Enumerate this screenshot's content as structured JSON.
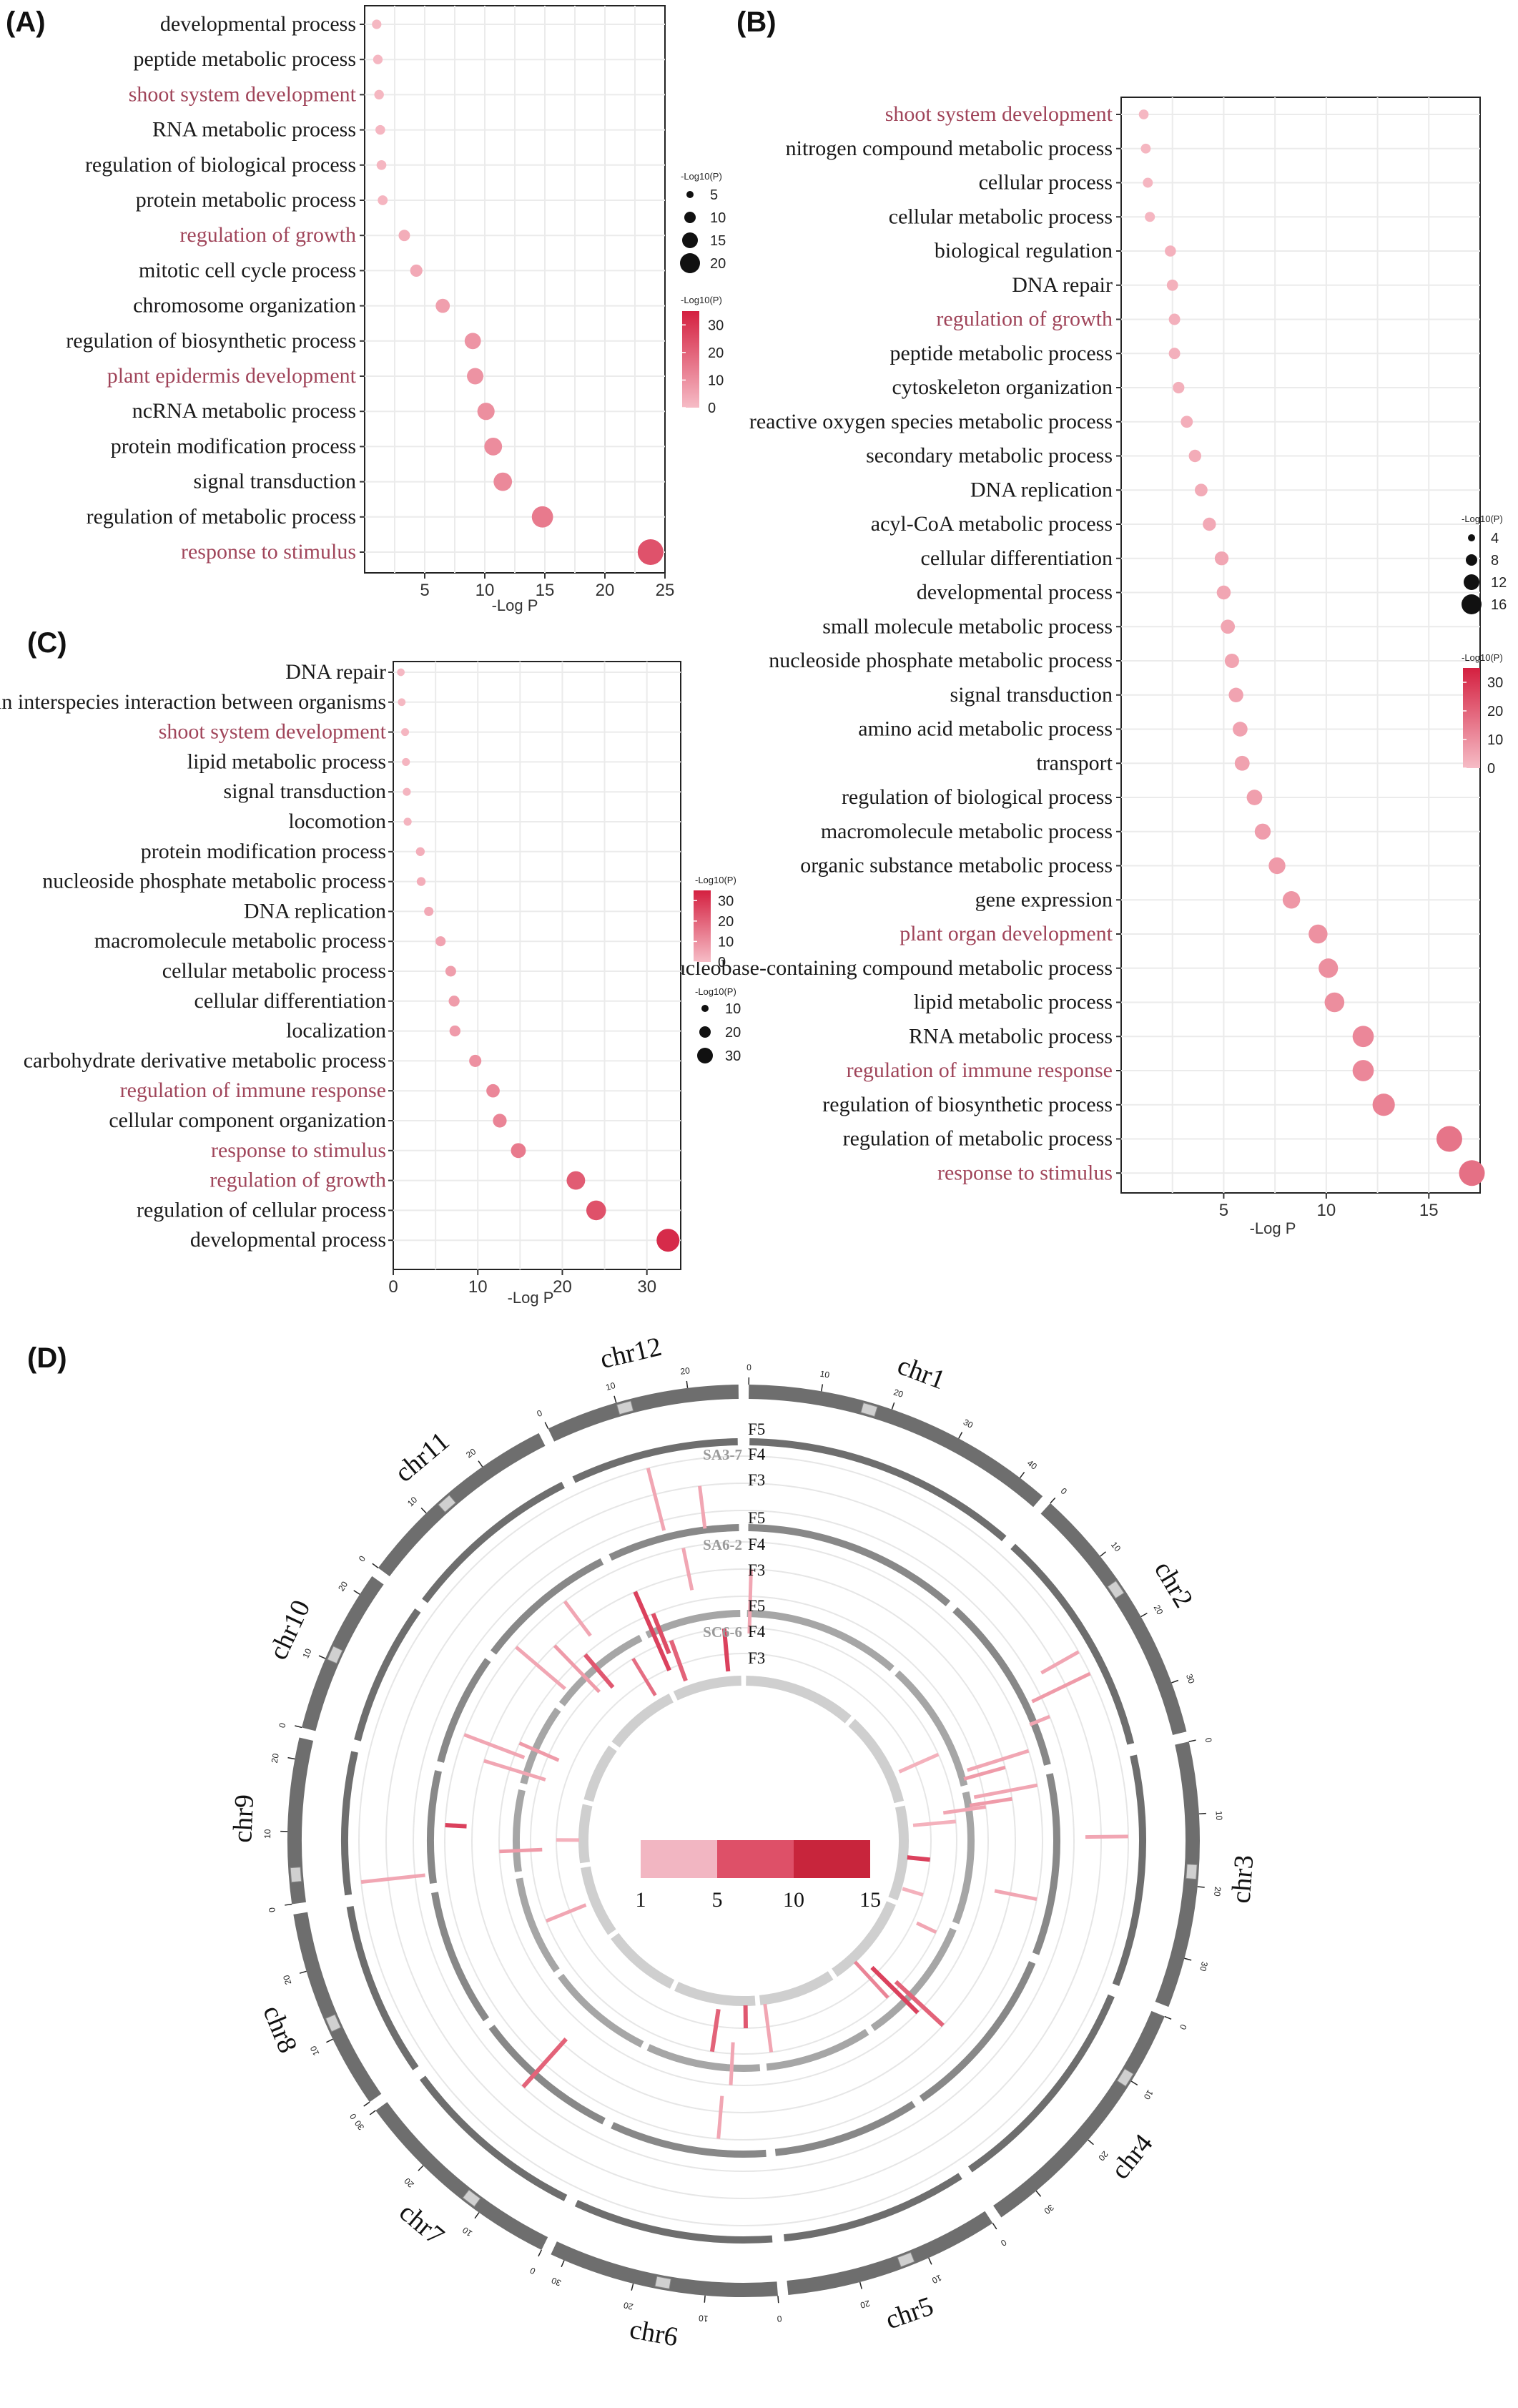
{
  "colors": {
    "highlight_text": "#a0455a",
    "normal_text": "#1a1a1a",
    "grid": "#ebebeb",
    "low": "#f6bcc6",
    "high": "#d42040",
    "outer_ring": "#6e6e6e",
    "ring_mid": "#888888",
    "ring_inner": "#a6a6a6",
    "ring_innermost": "#cfcfcf",
    "centromere": "#d0d0d0",
    "track_circle": "#e6e6e6"
  },
  "chart_data": [
    {
      "id": "A",
      "label": "(A)",
      "type": "scatter",
      "xlabel": "-Log P",
      "xlim": [
        0,
        25
      ],
      "xticks": [
        5,
        10,
        15,
        20,
        25
      ],
      "terms": [
        {
          "name": "developmental process",
          "value": 1.0,
          "highlight": false
        },
        {
          "name": "peptide metabolic process",
          "value": 1.1,
          "highlight": false
        },
        {
          "name": "shoot system development",
          "value": 1.2,
          "highlight": true
        },
        {
          "name": "RNA metabolic process",
          "value": 1.3,
          "highlight": false
        },
        {
          "name": "regulation of biological process",
          "value": 1.4,
          "highlight": false
        },
        {
          "name": "protein metabolic process",
          "value": 1.5,
          "highlight": false
        },
        {
          "name": "regulation of growth",
          "value": 3.3,
          "highlight": true
        },
        {
          "name": "mitotic cell cycle process",
          "value": 4.3,
          "highlight": false
        },
        {
          "name": "chromosome organization",
          "value": 6.5,
          "highlight": false
        },
        {
          "name": "regulation of biosynthetic process",
          "value": 9.0,
          "highlight": false
        },
        {
          "name": "plant epidermis development",
          "value": 9.2,
          "highlight": true
        },
        {
          "name": "ncRNA metabolic process",
          "value": 10.1,
          "highlight": false
        },
        {
          "name": "protein modification process",
          "value": 10.7,
          "highlight": false
        },
        {
          "name": "signal transduction",
          "value": 11.5,
          "highlight": false
        },
        {
          "name": "regulation of metabolic process",
          "value": 14.8,
          "highlight": false
        },
        {
          "name": "response to stimulus",
          "value": 23.8,
          "highlight": true
        }
      ],
      "size_legend": {
        "title": "-Log10(P)",
        "values": [
          5,
          10,
          15,
          20
        ]
      },
      "color_legend": {
        "title": "-Log10(P)",
        "ticks": [
          30,
          20,
          10,
          0
        ],
        "max": 35
      }
    },
    {
      "id": "B",
      "label": "(B)",
      "type": "scatter",
      "xlabel": "-Log P",
      "xlim": [
        0,
        17.5
      ],
      "xticks": [
        5,
        10,
        15
      ],
      "terms": [
        {
          "name": "shoot system development",
          "value": 1.1,
          "highlight": true
        },
        {
          "name": "nitrogen compound metabolic process",
          "value": 1.2,
          "highlight": false
        },
        {
          "name": "cellular process",
          "value": 1.3,
          "highlight": false
        },
        {
          "name": "cellular metabolic process",
          "value": 1.4,
          "highlight": false
        },
        {
          "name": "biological regulation",
          "value": 2.4,
          "highlight": false
        },
        {
          "name": "DNA repair",
          "value": 2.5,
          "highlight": false
        },
        {
          "name": "regulation of growth",
          "value": 2.6,
          "highlight": true
        },
        {
          "name": "peptide metabolic process",
          "value": 2.6,
          "highlight": false
        },
        {
          "name": "cytoskeleton organization",
          "value": 2.8,
          "highlight": false
        },
        {
          "name": "reactive oxygen species metabolic process",
          "value": 3.2,
          "highlight": false
        },
        {
          "name": "secondary metabolic process",
          "value": 3.6,
          "highlight": false
        },
        {
          "name": "DNA replication",
          "value": 3.9,
          "highlight": false
        },
        {
          "name": "acyl-CoA metabolic process",
          "value": 4.3,
          "highlight": false
        },
        {
          "name": "cellular differentiation",
          "value": 4.9,
          "highlight": false
        },
        {
          "name": "developmental process",
          "value": 5.0,
          "highlight": false
        },
        {
          "name": "small molecule metabolic process",
          "value": 5.2,
          "highlight": false
        },
        {
          "name": "nucleoside phosphate metabolic process",
          "value": 5.4,
          "highlight": false
        },
        {
          "name": "signal transduction",
          "value": 5.6,
          "highlight": false
        },
        {
          "name": "amino acid metabolic process",
          "value": 5.8,
          "highlight": false
        },
        {
          "name": "transport",
          "value": 5.9,
          "highlight": false
        },
        {
          "name": "regulation of biological process",
          "value": 6.5,
          "highlight": false
        },
        {
          "name": "macromolecule metabolic process",
          "value": 6.9,
          "highlight": false
        },
        {
          "name": "organic substance metabolic process",
          "value": 7.6,
          "highlight": false
        },
        {
          "name": "gene expression",
          "value": 8.3,
          "highlight": false
        },
        {
          "name": "plant organ development",
          "value": 9.6,
          "highlight": true
        },
        {
          "name": "nucleobase-containing compound metabolic process",
          "value": 10.1,
          "highlight": false
        },
        {
          "name": "lipid metabolic process",
          "value": 10.4,
          "highlight": false
        },
        {
          "name": "RNA metabolic process",
          "value": 11.8,
          "highlight": false
        },
        {
          "name": "regulation of immune response",
          "value": 11.8,
          "highlight": true
        },
        {
          "name": "regulation of biosynthetic process",
          "value": 12.8,
          "highlight": false
        },
        {
          "name": "regulation of metabolic process",
          "value": 16.0,
          "highlight": false
        },
        {
          "name": "response to stimulus",
          "value": 17.1,
          "highlight": true
        }
      ],
      "size_legend": {
        "title": "-Log10(P)",
        "values": [
          4,
          8,
          12,
          16
        ]
      },
      "color_legend": {
        "title": "-Log10(P)",
        "ticks": [
          30,
          20,
          10,
          0
        ],
        "max": 35
      }
    },
    {
      "id": "C",
      "label": "(C)",
      "type": "scatter",
      "xlabel": "-Log P",
      "xlim": [
        0,
        34
      ],
      "xticks": [
        0,
        10,
        20,
        30
      ],
      "terms": [
        {
          "name": "DNA repair",
          "value": 0.9,
          "highlight": false
        },
        {
          "name": "biological process involved in interspecies interaction between organisms",
          "value": 1.0,
          "highlight": false
        },
        {
          "name": "shoot system development",
          "value": 1.4,
          "highlight": true
        },
        {
          "name": "lipid metabolic process",
          "value": 1.5,
          "highlight": false
        },
        {
          "name": "signal transduction",
          "value": 1.6,
          "highlight": false
        },
        {
          "name": "locomotion",
          "value": 1.7,
          "highlight": false
        },
        {
          "name": "protein modification process",
          "value": 3.2,
          "highlight": false
        },
        {
          "name": "nucleoside phosphate metabolic process",
          "value": 3.3,
          "highlight": false
        },
        {
          "name": "DNA replication",
          "value": 4.2,
          "highlight": false
        },
        {
          "name": "macromolecule metabolic process",
          "value": 5.6,
          "highlight": false
        },
        {
          "name": "cellular metabolic process",
          "value": 6.8,
          "highlight": false
        },
        {
          "name": "cellular differentiation",
          "value": 7.2,
          "highlight": false
        },
        {
          "name": "localization",
          "value": 7.3,
          "highlight": false
        },
        {
          "name": "carbohydrate derivative metabolic process",
          "value": 9.7,
          "highlight": false
        },
        {
          "name": "regulation of immune response",
          "value": 11.8,
          "highlight": true
        },
        {
          "name": "cellular component organization",
          "value": 12.6,
          "highlight": false
        },
        {
          "name": "response to stimulus",
          "value": 14.8,
          "highlight": true
        },
        {
          "name": "regulation of growth",
          "value": 21.6,
          "highlight": true
        },
        {
          "name": "regulation of cellular process",
          "value": 24.0,
          "highlight": false
        },
        {
          "name": "developmental process",
          "value": 32.5,
          "highlight": false
        }
      ],
      "size_legend": {
        "title": "-Log10(P)",
        "values": [
          10,
          20,
          30
        ]
      },
      "color_legend": {
        "title": "-Log10(P)",
        "ticks": [
          30,
          20,
          10,
          0
        ],
        "max": 35
      }
    },
    {
      "id": "D",
      "label": "(D)",
      "type": "circos",
      "chromosomes": [
        {
          "name": "chr1",
          "length": 44,
          "ticks": [
            0,
            10,
            20,
            30,
            40
          ],
          "centromere": 16
        },
        {
          "name": "chr2",
          "length": 37,
          "ticks": [
            0,
            10,
            20,
            30
          ],
          "centromere": 14
        },
        {
          "name": "chr3",
          "length": 37,
          "ticks": [
            0,
            10,
            20,
            30
          ],
          "centromere": 17
        },
        {
          "name": "chr4",
          "length": 36,
          "ticks": [
            0,
            10,
            20,
            30
          ],
          "centromere": 9
        },
        {
          "name": "chr5",
          "length": 30,
          "ticks": [
            0,
            10,
            20
          ],
          "centromere": 12
        },
        {
          "name": "chr6",
          "length": 32,
          "ticks": [
            0,
            10,
            20,
            30
          ],
          "centromere": 15
        },
        {
          "name": "chr7",
          "length": 30,
          "ticks": [
            0,
            10,
            20,
            30
          ],
          "centromere": 11
        },
        {
          "name": "chr8",
          "length": 28,
          "ticks": [
            0,
            10,
            20
          ],
          "centromere": 11
        },
        {
          "name": "chr9",
          "length": 23,
          "ticks": [
            0,
            10,
            20
          ],
          "centromere": 3
        },
        {
          "name": "chr10",
          "length": 23,
          "ticks": [
            0,
            10,
            20
          ],
          "centromere": 10
        },
        {
          "name": "chr11",
          "length": 29,
          "ticks": [
            0,
            10,
            20
          ],
          "centromere": 12
        },
        {
          "name": "chr12",
          "length": 27,
          "ticks": [
            0,
            10,
            20
          ],
          "centromere": 10
        }
      ],
      "samples": [
        {
          "name": "SA3-7",
          "tracks": [
            "F5",
            "F4",
            "F3"
          ]
        },
        {
          "name": "SA6-2",
          "tracks": [
            "F5",
            "F4",
            "F3"
          ]
        },
        {
          "name": "SC6-6",
          "tracks": [
            "F5",
            "F4",
            "F3"
          ]
        }
      ],
      "colorbar": {
        "ticks": [
          "1",
          "5",
          "10",
          "15"
        ],
        "colors": [
          "#f2b6c2",
          "#de5068",
          "#c8253c"
        ]
      },
      "marks": [
        {
          "chr": "chr1",
          "pos": 1,
          "track": 4,
          "span": 3,
          "score": 3
        },
        {
          "chr": "chr2",
          "pos": 20,
          "track": 0,
          "span": 2,
          "score": 3
        },
        {
          "chr": "chr2",
          "pos": 24,
          "track": 0,
          "span": 3,
          "score": 4
        },
        {
          "chr": "chr2",
          "pos": 26,
          "track": 6,
          "span": 2,
          "score": 2
        },
        {
          "chr": "chr2",
          "pos": 28,
          "track": 2,
          "span": 1,
          "score": 3
        },
        {
          "chr": "chr2",
          "pos": 33,
          "track": 3,
          "span": 3,
          "score": 3
        },
        {
          "chr": "chr2",
          "pos": 35,
          "track": 4,
          "span": 2,
          "score": 4
        },
        {
          "chr": "chr3",
          "pos": 2,
          "track": 3,
          "span": 3,
          "score": 3
        },
        {
          "chr": "chr3",
          "pos": 4,
          "track": 4,
          "span": 2,
          "score": 4
        },
        {
          "chr": "chr3",
          "pos": 5,
          "track": 5,
          "span": 2,
          "score": 3
        },
        {
          "chr": "chr3",
          "pos": 8,
          "track": 6,
          "span": 2,
          "score": 2
        },
        {
          "chr": "chr3",
          "pos": 13,
          "track": 0,
          "span": 2,
          "score": 3
        },
        {
          "chr": "chr3",
          "pos": 20,
          "track": 7,
          "span": 2,
          "score": 12
        },
        {
          "chr": "chr3",
          "pos": 26,
          "track": 3,
          "span": 2,
          "score": 3
        },
        {
          "chr": "chr3",
          "pos": 32,
          "track": 7,
          "span": 1,
          "score": 2
        },
        {
          "chr": "chr4",
          "pos": 3,
          "track": 6,
          "span": 1,
          "score": 3
        },
        {
          "chr": "chr4",
          "pos": 22,
          "track": 4,
          "span": 3,
          "score": 9
        },
        {
          "chr": "chr4",
          "pos": 24,
          "track": 5,
          "span": 3,
          "score": 12
        },
        {
          "chr": "chr4",
          "pos": 27,
          "track": 6,
          "span": 3,
          "score": 6
        },
        {
          "chr": "chr5",
          "pos": 28,
          "track": 6,
          "span": 3,
          "score": 3
        },
        {
          "chr": "chr6",
          "pos": 4,
          "track": 7,
          "span": 2,
          "score": 10
        },
        {
          "chr": "chr6",
          "pos": 8,
          "track": 5,
          "span": 2,
          "score": 3
        },
        {
          "chr": "chr6",
          "pos": 10,
          "track": 3,
          "span": 2,
          "score": 3
        },
        {
          "chr": "chr6",
          "pos": 14,
          "track": 6,
          "span": 2,
          "score": 9
        },
        {
          "chr": "chr7",
          "pos": 17,
          "track": 2,
          "span": 3,
          "score": 9
        },
        {
          "chr": "chr8",
          "pos": 14,
          "track": 6,
          "span": 2,
          "score": 3
        },
        {
          "chr": "chr9",
          "pos": 2,
          "track": 0,
          "span": 3,
          "score": 3
        },
        {
          "chr": "chr9",
          "pos": 6,
          "track": 5,
          "span": 2,
          "score": 4
        },
        {
          "chr": "chr9",
          "pos": 9,
          "track": 7,
          "span": 2,
          "score": 2
        },
        {
          "chr": "chr9",
          "pos": 12,
          "track": 3,
          "span": 1,
          "score": 12
        },
        {
          "chr": "chr10",
          "pos": 3,
          "track": 4,
          "span": 3,
          "score": 3
        },
        {
          "chr": "chr10",
          "pos": 7,
          "track": 3,
          "span": 3,
          "score": 3
        },
        {
          "chr": "chr10",
          "pos": 10,
          "track": 5,
          "span": 2,
          "score": 4
        },
        {
          "chr": "chr11",
          "pos": 4,
          "track": 3,
          "span": 3,
          "score": 3
        },
        {
          "chr": "chr11",
          "pos": 10,
          "track": 4,
          "span": 3,
          "score": 4
        },
        {
          "chr": "chr11",
          "pos": 14,
          "track": 5,
          "span": 2,
          "score": 10
        },
        {
          "chr": "chr11",
          "pos": 18,
          "track": 3,
          "span": 2,
          "score": 3
        },
        {
          "chr": "chr11",
          "pos": 24,
          "track": 6,
          "span": 2,
          "score": 8
        },
        {
          "chr": "chr12",
          "pos": 2,
          "track": 4,
          "span": 4,
          "score": 12
        },
        {
          "chr": "chr12",
          "pos": 4,
          "track": 5,
          "span": 2,
          "score": 11
        },
        {
          "chr": "chr12",
          "pos": 6,
          "track": 6,
          "span": 2,
          "score": 9
        },
        {
          "chr": "chr12",
          "pos": 12,
          "track": 0,
          "span": 3,
          "score": 3
        },
        {
          "chr": "chr12",
          "pos": 15,
          "track": 3,
          "span": 2,
          "score": 3
        },
        {
          "chr": "chr12",
          "pos": 20,
          "track": 1,
          "span": 2,
          "score": 3
        },
        {
          "chr": "chr12",
          "pos": 22,
          "track": 6,
          "span": 2,
          "score": 12
        }
      ]
    }
  ]
}
